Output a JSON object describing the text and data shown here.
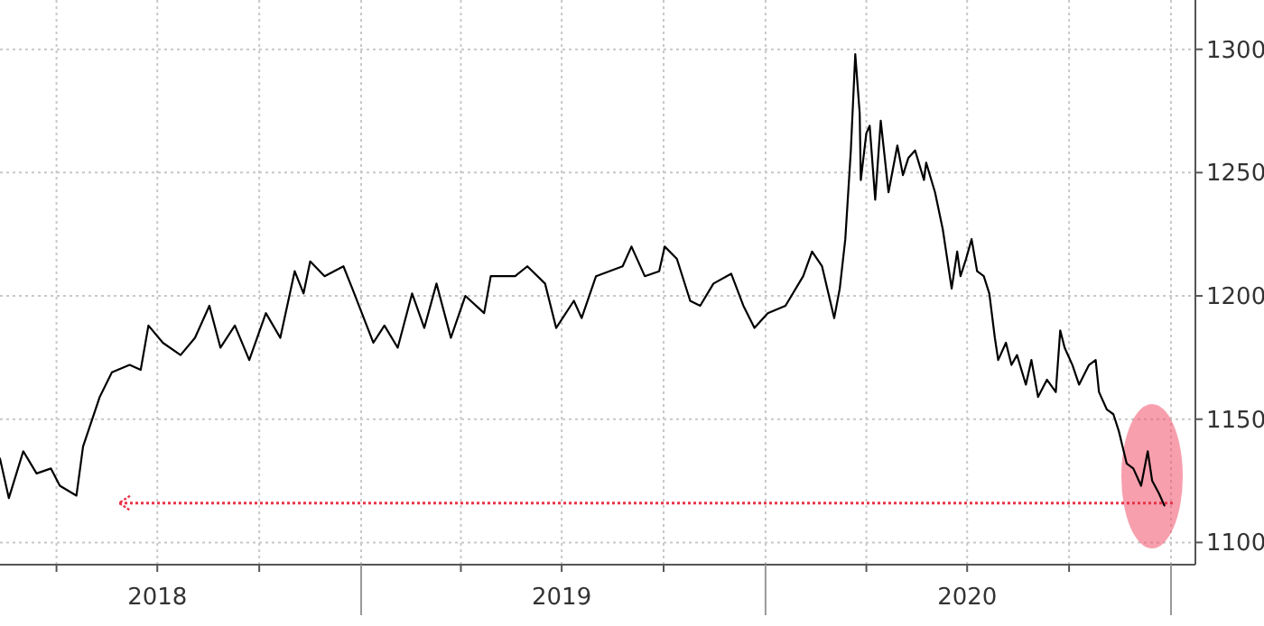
{
  "chart_data": {
    "type": "line",
    "xlim": [
      "2018-02-09",
      "2021-01-23"
    ],
    "ylim": [
      1091,
      1320
    ],
    "xticks": [
      {
        "value": "2018-04-01",
        "label": null
      },
      {
        "value": "2018-07-01",
        "label": "2018"
      },
      {
        "value": "2018-10-01",
        "label": null
      },
      {
        "value": "2019-01-01",
        "label": null
      },
      {
        "value": "2019-04-01",
        "label": null
      },
      {
        "value": "2019-07-01",
        "label": "2019"
      },
      {
        "value": "2019-10-01",
        "label": null
      },
      {
        "value": "2020-01-01",
        "label": null
      },
      {
        "value": "2020-04-01",
        "label": null
      },
      {
        "value": "2020-07-01",
        "label": "2020"
      },
      {
        "value": "2020-10-01",
        "label": null
      },
      {
        "value": "2021-01-01",
        "label": null
      }
    ],
    "yticks": [
      1100,
      1150,
      1200,
      1250,
      1300
    ],
    "grid": true,
    "x": [
      "2018-02-09",
      "2018-02-17",
      "2018-03-02",
      "2018-03-14",
      "2018-03-27",
      "2018-04-04",
      "2018-04-19",
      "2018-04-25",
      "2018-05-10",
      "2018-05-21",
      "2018-06-06",
      "2018-06-16",
      "2018-06-23",
      "2018-07-06",
      "2018-07-22",
      "2018-08-04",
      "2018-08-17",
      "2018-08-27",
      "2018-09-09",
      "2018-09-22",
      "2018-10-07",
      "2018-10-20",
      "2018-11-02",
      "2018-11-10",
      "2018-11-16",
      "2018-11-29",
      "2018-12-16",
      "2018-12-24",
      "2019-01-12",
      "2019-01-22",
      "2019-02-03",
      "2019-02-16",
      "2019-02-27",
      "2019-03-10",
      "2019-03-23",
      "2019-04-05",
      "2019-04-22",
      "2019-04-28",
      "2019-05-20",
      "2019-05-31",
      "2019-06-16",
      "2019-06-26",
      "2019-07-12",
      "2019-07-19",
      "2019-08-01",
      "2019-08-25",
      "2019-09-02",
      "2019-09-14",
      "2019-09-27",
      "2019-10-02",
      "2019-10-13",
      "2019-10-25",
      "2019-11-03",
      "2019-11-15",
      "2019-12-01",
      "2019-12-12",
      "2019-12-22",
      "2020-01-03",
      "2020-01-19",
      "2020-02-04",
      "2020-02-12",
      "2020-02-21",
      "2020-03-03",
      "2020-03-08",
      "2020-03-13",
      "2020-03-18",
      "2020-03-22",
      "2020-03-26",
      "2020-03-27",
      "2020-04-01",
      "2020-04-04",
      "2020-04-09",
      "2020-04-14",
      "2020-04-21",
      "2020-04-29",
      "2020-05-04",
      "2020-05-09",
      "2020-05-15",
      "2020-05-23",
      "2020-05-25",
      "2020-06-02",
      "2020-06-09",
      "2020-06-17",
      "2020-06-22",
      "2020-06-25",
      "2020-06-30",
      "2020-07-05",
      "2020-07-10",
      "2020-07-16",
      "2020-07-21",
      "2020-07-26",
      "2020-07-29",
      "2020-08-05",
      "2020-08-10",
      "2020-08-15",
      "2020-08-23",
      "2020-08-28",
      "2020-09-03",
      "2020-09-11",
      "2020-09-19",
      "2020-09-23",
      "2020-09-27",
      "2020-10-04",
      "2020-10-10",
      "2020-10-19",
      "2020-10-25",
      "2020-10-28",
      "2020-11-04",
      "2020-11-10",
      "2020-11-15",
      "2020-11-22",
      "2020-11-28",
      "2020-12-05",
      "2020-12-11",
      "2020-12-15",
      "2020-12-21",
      "2020-12-26"
    ],
    "series": [
      {
        "color": "#000000",
        "values": [
          1134,
          1118,
          1137,
          1128,
          1130,
          1123,
          1119,
          1139,
          1159,
          1169,
          1172,
          1170,
          1188,
          1181,
          1176,
          1183,
          1196,
          1179,
          1188,
          1174,
          1193,
          1183,
          1210,
          1201,
          1214,
          1208,
          1212,
          1203,
          1181,
          1188,
          1179,
          1201,
          1187,
          1205,
          1183,
          1200,
          1193,
          1208,
          1208,
          1212,
          1205,
          1187,
          1198,
          1191,
          1208,
          1212,
          1220,
          1208,
          1210,
          1220,
          1215,
          1198,
          1196,
          1205,
          1209,
          1196,
          1187,
          1193,
          1196,
          1208,
          1218,
          1212,
          1191,
          1203,
          1223,
          1259,
          1298,
          1274,
          1247,
          1266,
          1269,
          1239,
          1271,
          1242,
          1261,
          1249,
          1256,
          1259,
          1247,
          1254,
          1242,
          1227,
          1203,
          1218,
          1208,
          1215,
          1223,
          1210,
          1208,
          1201,
          1183,
          1174,
          1181,
          1172,
          1176,
          1164,
          1174,
          1159,
          1166,
          1161,
          1186,
          1179,
          1172,
          1164,
          1172,
          1174,
          1161,
          1154,
          1152,
          1145,
          1132,
          1130,
          1123,
          1137,
          1125,
          1120,
          1115
        ]
      }
    ],
    "ref_lines": [
      {
        "axis": "y",
        "value": 1116,
        "color": "#e8354a",
        "line_style": "dotted"
      }
    ]
  }
}
